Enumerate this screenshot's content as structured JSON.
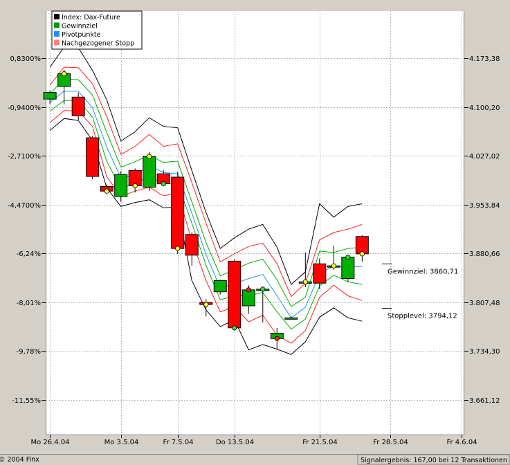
{
  "chart_data": {
    "type": "candlestick",
    "grid": true,
    "legend_position": "top-left",
    "y_left_ticks": [
      "0,8300%",
      "-0,9400%",
      "-2,7100%",
      "-4,4700%",
      "-6,24%",
      "-8,01%",
      "-9,78%",
      "-11,55%"
    ],
    "y_right_ticks": [
      "4.173,38",
      "4.100,20",
      "4.027,02",
      "3.953,84",
      "3.880,66",
      "3.807,48",
      "3.734,30",
      "3.661,12"
    ],
    "y_right_values": [
      4173.38,
      4100.2,
      4027.02,
      3953.84,
      3880.66,
      3807.48,
      3734.3,
      3661.12
    ],
    "ylim": [
      3609,
      4244
    ],
    "x_tick_labels": [
      "Mo 26.4.04",
      "Mo 3.5.04",
      "Fr 7.5.04",
      "Do 13.5.04",
      "Fr 21.5.04",
      "Fr 28.5.04",
      "Fr 4.6.04"
    ],
    "x_tick_index": [
      0,
      5,
      9,
      13,
      19,
      24,
      29
    ],
    "x_range": [
      -0.3,
      29.2
    ],
    "legend": [
      {
        "label": "Index: Dax-Future",
        "color": "#000000"
      },
      {
        "label": "Gewinnziel",
        "color": "#009900"
      },
      {
        "label": "Pivotpunkte",
        "color": "#1f8fff"
      },
      {
        "label": "Nachgezogener Stopp",
        "color": "#ff8080"
      }
    ],
    "candles": [
      {
        "x": 0,
        "open": 4112,
        "high": 4125,
        "low": 4104,
        "close": 4122,
        "color": "green",
        "dot": null
      },
      {
        "x": 1,
        "open": 4131,
        "high": 4156,
        "low": 4104,
        "close": 4150,
        "color": "green",
        "dot": "yellow"
      },
      {
        "x": 2,
        "open": 4115,
        "high": 4122,
        "low": 4081,
        "close": 4087,
        "color": "red",
        "dot": null
      },
      {
        "x": 3,
        "open": 4054,
        "high": 4057,
        "low": 3992,
        "close": 3996,
        "color": "red",
        "dot": null
      },
      {
        "x": 4,
        "open": 3981,
        "high": 3984,
        "low": 3971,
        "close": 3974,
        "color": "red",
        "dot": "yellow"
      },
      {
        "x": 5,
        "open": 3966,
        "high": 4004,
        "low": 3958,
        "close": 3999,
        "color": "green",
        "dot": null
      },
      {
        "x": 6,
        "open": 4005,
        "high": 4008,
        "low": 3972,
        "close": 3982,
        "color": "red",
        "dot": "yellow"
      },
      {
        "x": 7,
        "open": 3980,
        "high": 4033,
        "low": 3974,
        "close": 4026,
        "color": "green",
        "dot": "yellow"
      },
      {
        "x": 8,
        "open": 4000,
        "high": 4006,
        "low": 3982,
        "close": 3985,
        "color": "red",
        "dot": "green"
      },
      {
        "x": 9,
        "open": 3995,
        "high": 4003,
        "low": 3880,
        "close": 3888,
        "color": "red",
        "dot": "yellow"
      },
      {
        "x": 10,
        "open": 3909,
        "high": 3912,
        "low": 3862,
        "close": 3878,
        "color": "red",
        "dot": null
      },
      {
        "x": 11,
        "open": 3807,
        "high": 3812,
        "low": 3786,
        "close": 3804,
        "color": "red",
        "dot": "yellow"
      },
      {
        "x": 12,
        "open": 3823,
        "high": 3841,
        "low": 3819,
        "close": 3840,
        "color": "green",
        "dot": null
      },
      {
        "x": 13,
        "open": 3869,
        "high": 3872,
        "low": 3765,
        "close": 3769,
        "color": "red",
        "dot": "green"
      },
      {
        "x": 14,
        "open": 3802,
        "high": 3833,
        "low": 3790,
        "close": 3826,
        "color": "green",
        "dot": "red"
      },
      {
        "x": 15,
        "open": 3825,
        "high": 3830,
        "low": 3777,
        "close": 3827,
        "color": "green",
        "dot": "green"
      },
      {
        "x": 16,
        "open": 3761,
        "high": 3769,
        "low": 3737,
        "close": 3753,
        "color": "green",
        "dot": "red"
      },
      {
        "x": 17,
        "open": 3784,
        "high": 3786,
        "low": 3782,
        "close": 3784,
        "color": "green",
        "dot": null
      },
      {
        "x": 18,
        "open": 3837,
        "high": 3882,
        "low": 3830,
        "close": 3838,
        "color": "green",
        "dot": "yellow"
      },
      {
        "x": 19,
        "open": 3865,
        "high": 3873,
        "low": 3827,
        "close": 3836,
        "color": "red",
        "dot": null
      },
      {
        "x": 20,
        "open": 3860,
        "high": 3892,
        "low": 3856,
        "close": 3862,
        "color": "green",
        "dot": "yellow"
      },
      {
        "x": 21,
        "open": 3843,
        "high": 3876,
        "low": 3838,
        "close": 3875,
        "color": "green",
        "dot": "green"
      },
      {
        "x": 22,
        "open": 3906,
        "high": 3908,
        "low": 3868,
        "close": 3880,
        "color": "red",
        "dot": "yellow"
      }
    ],
    "lines": {
      "black_upper": [
        4160,
        4190,
        4189,
        4155,
        4111,
        4049,
        4063,
        4084,
        4071,
        4069,
        4005,
        3942,
        3888,
        3904,
        3917,
        3924,
        3890,
        3834,
        3853,
        3955,
        3935,
        3951,
        3955
      ],
      "red_upper": [
        4133,
        4160,
        4159,
        4135,
        4086,
        4029,
        4041,
        4059,
        4041,
        4045,
        3987,
        3926,
        3868,
        3880,
        3891,
        3896,
        3865,
        3816,
        3836,
        3901,
        3912,
        3917,
        3924
      ],
      "green_upper": [
        4120,
        4142,
        4141,
        4118,
        4062,
        4010,
        4018,
        4028,
        4017,
        4019,
        3958,
        3897,
        3847,
        3856,
        3866,
        3872,
        3841,
        3801,
        3815,
        3884,
        3882,
        3888,
        3890
      ],
      "pivot": [
        4107,
        4124,
        4124,
        4099,
        4040,
        3994,
        3998,
        4012,
        4002,
        4000,
        3941,
        3879,
        3829,
        3835,
        3843,
        3849,
        3817,
        3784,
        3800,
        3850,
        3862,
        3860,
        3861
      ],
      "green_lower": [
        4094,
        4110,
        4110,
        4085,
        4019,
        3978,
        3986,
        3996,
        3985,
        3986,
        3926,
        3863,
        3811,
        3817,
        3817,
        3822,
        3793,
        3767,
        3782,
        3832,
        3848,
        3838,
        3834
      ],
      "red_lower": [
        4077,
        4095,
        4094,
        4071,
        3996,
        3966,
        3974,
        3980,
        3967,
        3971,
        3900,
        3840,
        3793,
        3801,
        3778,
        3788,
        3758,
        3746,
        3765,
        3815,
        3833,
        3817,
        3810
      ],
      "black_lower": [
        4065,
        4083,
        4080,
        4050,
        3979,
        3951,
        3957,
        3961,
        3949,
        3950,
        3840,
        3796,
        3771,
        3781,
        3736,
        3744,
        3737,
        3729,
        3748,
        3785,
        3799,
        3784,
        3779
      ]
    },
    "annotations": [
      {
        "label": "Gewinnziel: 3860,71",
        "value": 3860.71
      },
      {
        "label": "Stopplevel: 3794,12",
        "value": 3794.12
      }
    ]
  },
  "footer": {
    "copyright": "© 2004 Finx",
    "summary": "Signalergebnis: 167,00 bei 12 Transaktionen"
  }
}
